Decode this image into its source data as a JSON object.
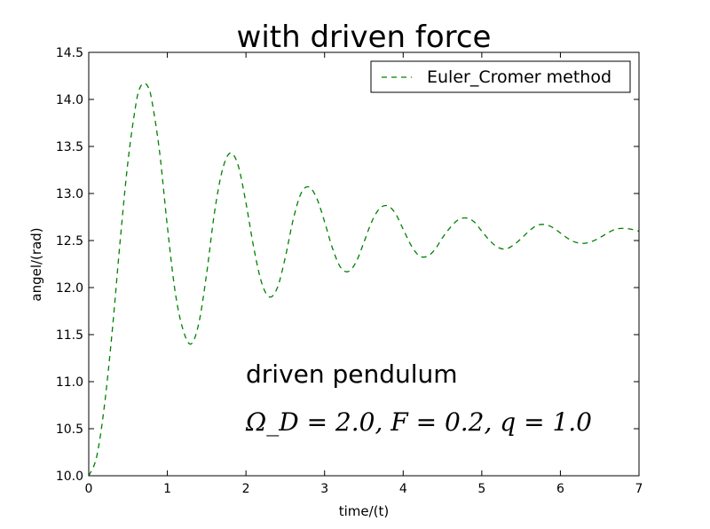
{
  "chart_data": {
    "type": "line",
    "title": "with driven force",
    "xlabel": "time/(t)",
    "ylabel": "angel/(rad)",
    "xlim": [
      0,
      7
    ],
    "ylim": [
      10.0,
      14.5
    ],
    "x_ticks": [
      "0",
      "1",
      "2",
      "3",
      "4",
      "5",
      "6",
      "7"
    ],
    "y_ticks": [
      "10.0",
      "10.5",
      "11.0",
      "11.5",
      "12.0",
      "12.5",
      "13.0",
      "13.5",
      "14.0",
      "14.5"
    ],
    "grid": false,
    "legend_position": "top-right",
    "series": [
      {
        "name": "Euler_Cromer method",
        "color": "#008000",
        "line_style": "dashed",
        "x": [
          0,
          0.1,
          0.2,
          0.3,
          0.4,
          0.5,
          0.6,
          0.65,
          0.7,
          0.75,
          0.8,
          0.9,
          1.0,
          1.1,
          1.2,
          1.3,
          1.4,
          1.5,
          1.6,
          1.7,
          1.8,
          1.9,
          2.0,
          2.1,
          2.2,
          2.3,
          2.4,
          2.5,
          2.6,
          2.7,
          2.8,
          2.9,
          3.0,
          3.1,
          3.2,
          3.3,
          3.4,
          3.5,
          3.6,
          3.7,
          3.8,
          3.9,
          4.0,
          4.1,
          4.2,
          4.3,
          4.4,
          4.5,
          4.6,
          4.7,
          4.8,
          4.9,
          5.0,
          5.1,
          5.2,
          5.3,
          5.4,
          5.5,
          5.6,
          5.7,
          5.8,
          5.9,
          6.0,
          6.1,
          6.2,
          6.3,
          6.4,
          6.5,
          6.6,
          6.7,
          6.8,
          6.9,
          7.0
        ],
        "y": [
          10.0,
          10.2,
          10.75,
          11.55,
          12.5,
          13.35,
          13.95,
          14.12,
          14.17,
          14.14,
          14.0,
          13.45,
          12.65,
          11.95,
          11.55,
          11.4,
          11.62,
          12.15,
          12.8,
          13.25,
          13.43,
          13.3,
          12.9,
          12.42,
          12.05,
          11.9,
          12.0,
          12.32,
          12.72,
          13.0,
          13.07,
          12.95,
          12.7,
          12.42,
          12.22,
          12.17,
          12.27,
          12.48,
          12.7,
          12.84,
          12.87,
          12.79,
          12.62,
          12.45,
          12.34,
          12.33,
          12.4,
          12.53,
          12.64,
          12.72,
          12.74,
          12.7,
          12.6,
          12.5,
          12.43,
          12.41,
          12.45,
          12.52,
          12.6,
          12.66,
          12.67,
          12.64,
          12.58,
          12.52,
          12.48,
          12.47,
          12.49,
          12.53,
          12.58,
          12.62,
          12.63,
          12.62,
          12.6
        ]
      }
    ],
    "annotations": [
      "driven pendulum",
      "Ω_D = 2.0, F = 0.2, q = 1.0"
    ]
  }
}
